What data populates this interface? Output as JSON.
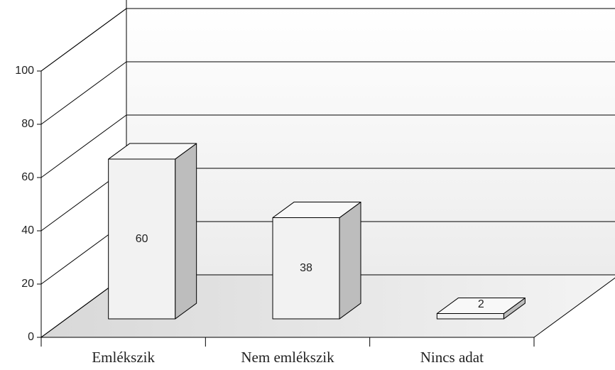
{
  "chart_data": {
    "type": "bar3d",
    "categories": [
      "Emlékszik",
      "Nem emlékszik",
      "Nincs adat"
    ],
    "values": [
      60,
      38,
      2
    ],
    "ylim": [
      0,
      100
    ],
    "yticks": [
      0,
      20,
      40,
      60,
      80,
      100
    ],
    "grid": true,
    "color": "#f2f2f2"
  }
}
